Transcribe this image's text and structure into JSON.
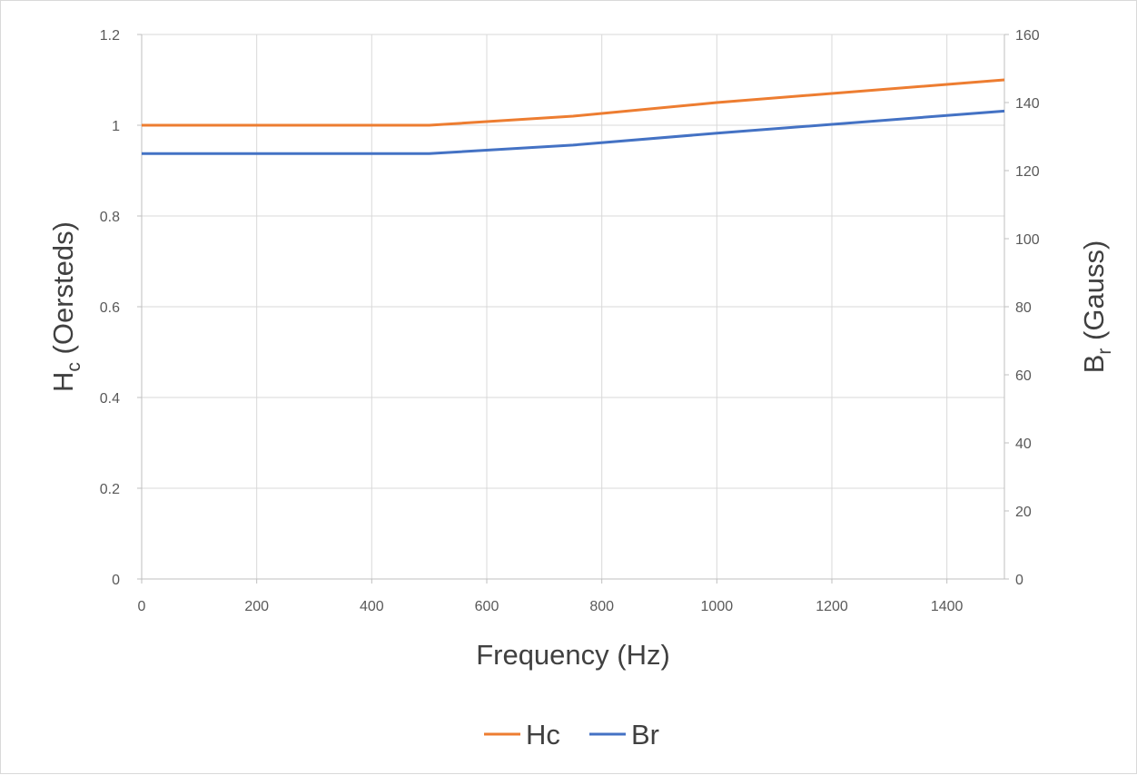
{
  "chart_data": {
    "type": "line",
    "xlabel": "Frequency (Hz)",
    "ylabel_left": {
      "main": "H",
      "sub": "c",
      "suffix": " (Oersteds)"
    },
    "ylabel_right": {
      "main": "B",
      "sub": "r",
      "suffix": " (Gauss)"
    },
    "xlim": [
      0,
      1500
    ],
    "ylim_left": [
      0,
      1.2
    ],
    "ylim_right": [
      0,
      160
    ],
    "x_ticks": [
      "0",
      "200",
      "400",
      "600",
      "800",
      "1000",
      "1200",
      "1400"
    ],
    "y_left_ticks": [
      "0",
      "0.2",
      "0.4",
      "0.6",
      "0.8",
      "1",
      "1.2"
    ],
    "y_right_ticks": [
      "0",
      "20",
      "40",
      "60",
      "80",
      "100",
      "120",
      "140",
      "160"
    ],
    "grid": true,
    "legend_position": "bottom",
    "series": [
      {
        "name": "Hc",
        "axis": "left",
        "color": "#ED7D31",
        "x": [
          0,
          500,
          750,
          1000,
          1500
        ],
        "y": [
          1.0,
          1.0,
          1.02,
          1.05,
          1.1
        ]
      },
      {
        "name": "Br",
        "axis": "right",
        "color": "#4472C4",
        "x": [
          0,
          500,
          750,
          1000,
          1500
        ],
        "y": [
          125,
          125,
          127.5,
          131,
          137.5
        ]
      }
    ]
  }
}
